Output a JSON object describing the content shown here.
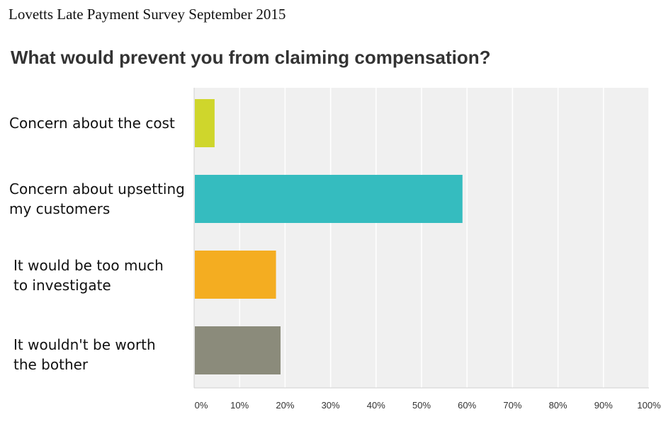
{
  "header": {
    "survey_title": "Lovetts Late Payment Survey September 2015",
    "question": "What would prevent you from claiming compensation?"
  },
  "chart_data": {
    "type": "bar",
    "orientation": "horizontal",
    "categories": [
      [
        "Concern about the cost"
      ],
      [
        "Concern about upsetting",
        "my customers"
      ],
      [
        "It would be too much",
        "to investigate"
      ],
      [
        "It wouldn't be worth",
        "the bother"
      ]
    ],
    "values": [
      4.5,
      59,
      18,
      19
    ],
    "colors": [
      "#cfd62c",
      "#35bcbf",
      "#f4ad21",
      "#8b8b7b"
    ],
    "xlim": [
      0,
      100
    ],
    "xticks": [
      "0%",
      "10%",
      "20%",
      "30%",
      "40%",
      "50%",
      "60%",
      "70%",
      "80%",
      "90%",
      "100%"
    ],
    "grid": true,
    "plot_background": "#f0f0f0",
    "title": "What would prevent you from claiming compensation?",
    "xlabel": "",
    "ylabel": ""
  }
}
